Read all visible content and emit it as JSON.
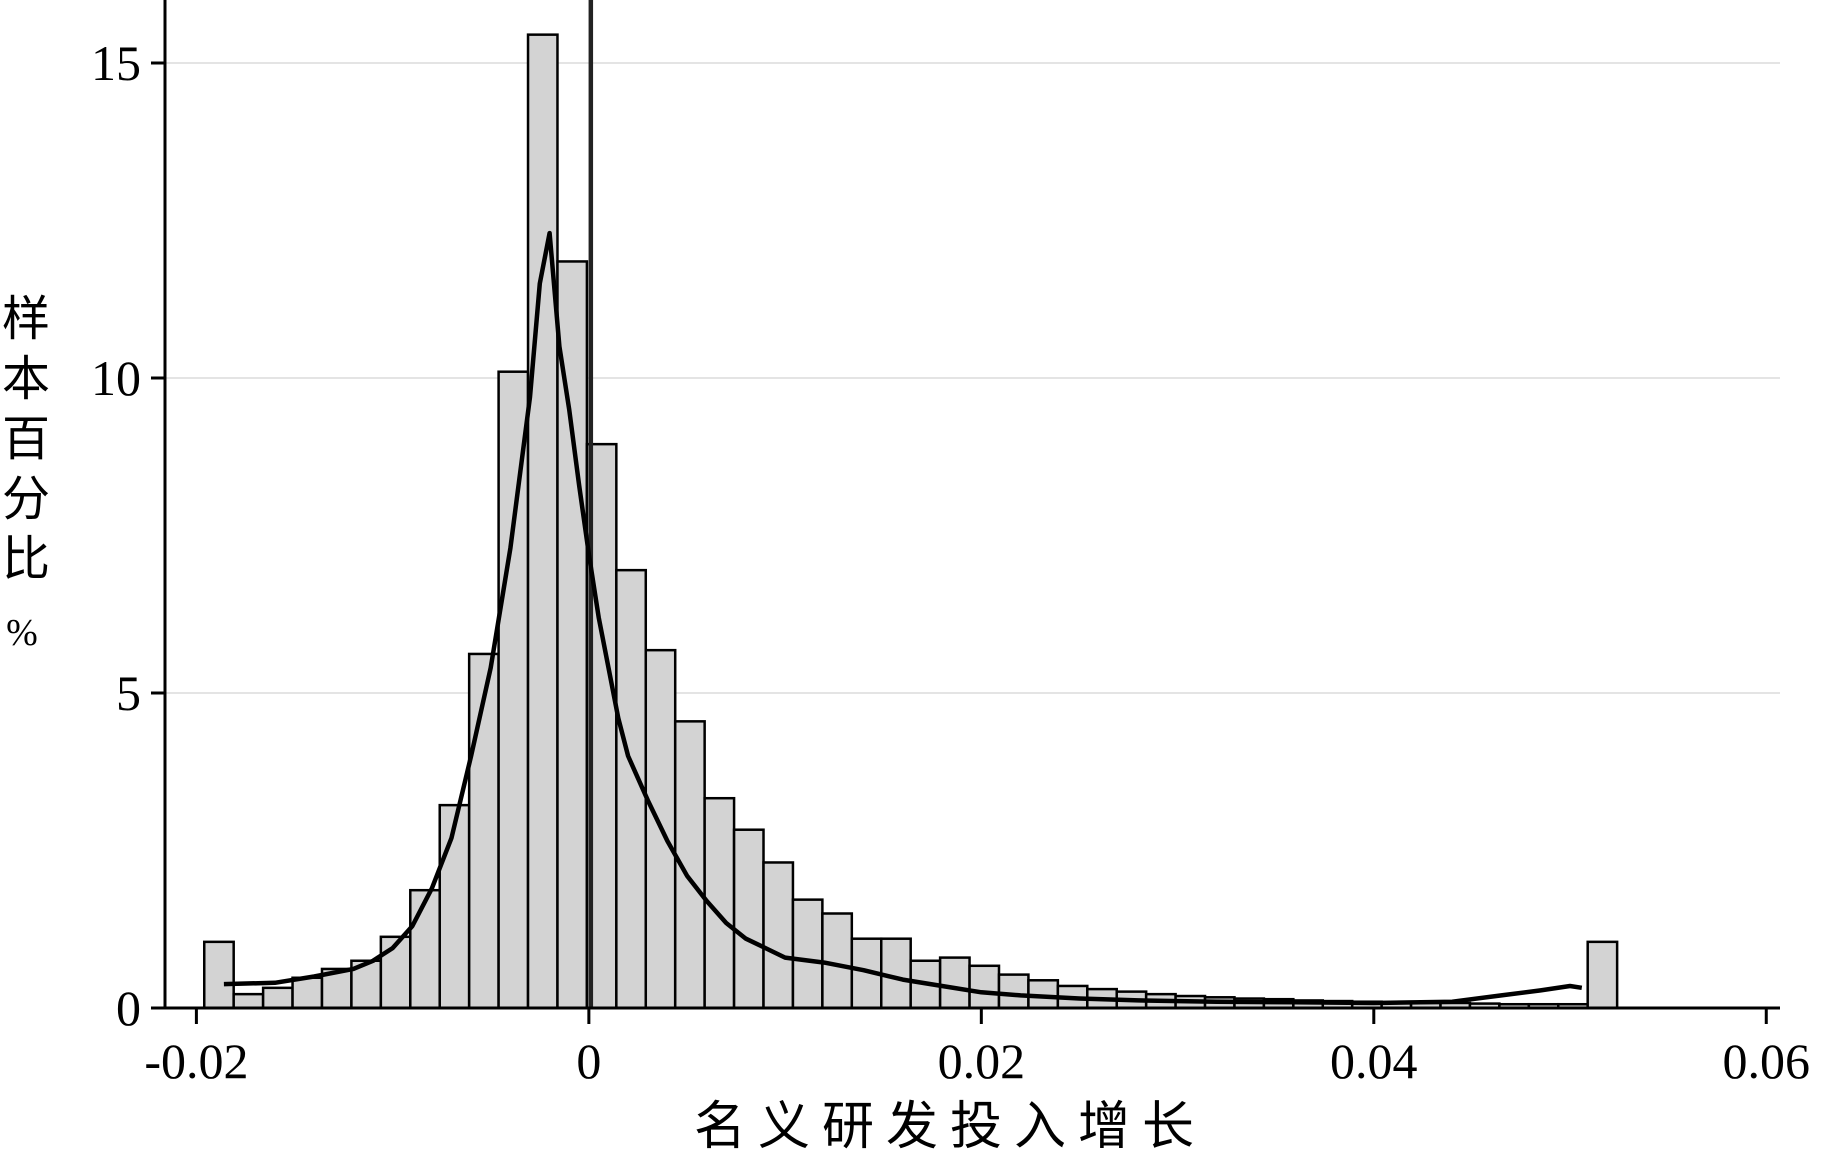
{
  "chart_data": {
    "type": "bar",
    "title": "",
    "xlabel": "名义研发投入增长",
    "ylabel": "样本百分比",
    "ylabel_unit": "%",
    "xlim": [
      -0.0216,
      0.0607
    ],
    "ylim": [
      0,
      16
    ],
    "x_ticks": [
      {
        "value": -0.02,
        "label": "-0.02"
      },
      {
        "value": 0,
        "label": "0"
      },
      {
        "value": 0.02,
        "label": "0.02"
      },
      {
        "value": 0.04,
        "label": "0.04"
      },
      {
        "value": 0.06,
        "label": "0.06"
      }
    ],
    "y_ticks": [
      {
        "value": 0,
        "label": "0"
      },
      {
        "value": 5,
        "label": "5"
      },
      {
        "value": 10,
        "label": "10"
      },
      {
        "value": 15,
        "label": "15"
      }
    ],
    "grid": "horizontal",
    "bin_width": 0.0015,
    "bins": [
      {
        "x0": -0.0196,
        "value": 1.05
      },
      {
        "x0": -0.0181,
        "value": 0.22
      },
      {
        "x0": -0.0166,
        "value": 0.32
      },
      {
        "x0": -0.0151,
        "value": 0.48
      },
      {
        "x0": -0.0136,
        "value": 0.62
      },
      {
        "x0": -0.0121,
        "value": 0.75
      },
      {
        "x0": -0.0106,
        "value": 1.13
      },
      {
        "x0": -0.0091,
        "value": 1.87
      },
      {
        "x0": -0.0076,
        "value": 3.22
      },
      {
        "x0": -0.0061,
        "value": 5.62
      },
      {
        "x0": -0.0046,
        "value": 10.1
      },
      {
        "x0": -0.0031,
        "value": 15.45
      },
      {
        "x0": -0.0016,
        "value": 11.85
      },
      {
        "x0": -0.0001,
        "value": 8.95
      },
      {
        "x0": 0.0014,
        "value": 6.95
      },
      {
        "x0": 0.0029,
        "value": 5.68
      },
      {
        "x0": 0.0044,
        "value": 4.55
      },
      {
        "x0": 0.0059,
        "value": 3.33
      },
      {
        "x0": 0.0074,
        "value": 2.83
      },
      {
        "x0": 0.0089,
        "value": 2.31
      },
      {
        "x0": 0.0104,
        "value": 1.72
      },
      {
        "x0": 0.0119,
        "value": 1.5
      },
      {
        "x0": 0.0134,
        "value": 1.1
      },
      {
        "x0": 0.0149,
        "value": 1.1
      },
      {
        "x0": 0.0164,
        "value": 0.75
      },
      {
        "x0": 0.0179,
        "value": 0.8
      },
      {
        "x0": 0.0194,
        "value": 0.67
      },
      {
        "x0": 0.0209,
        "value": 0.53
      },
      {
        "x0": 0.0224,
        "value": 0.44
      },
      {
        "x0": 0.0239,
        "value": 0.35
      },
      {
        "x0": 0.0254,
        "value": 0.3
      },
      {
        "x0": 0.0269,
        "value": 0.26
      },
      {
        "x0": 0.0284,
        "value": 0.22
      },
      {
        "x0": 0.0299,
        "value": 0.19
      },
      {
        "x0": 0.0314,
        "value": 0.17
      },
      {
        "x0": 0.0329,
        "value": 0.15
      },
      {
        "x0": 0.0344,
        "value": 0.14
      },
      {
        "x0": 0.0359,
        "value": 0.12
      },
      {
        "x0": 0.0374,
        "value": 0.11
      },
      {
        "x0": 0.0389,
        "value": 0.1
      },
      {
        "x0": 0.0404,
        "value": 0.09
      },
      {
        "x0": 0.0419,
        "value": 0.08
      },
      {
        "x0": 0.0434,
        "value": 0.08
      },
      {
        "x0": 0.0449,
        "value": 0.07
      },
      {
        "x0": 0.0464,
        "value": 0.06
      },
      {
        "x0": 0.0479,
        "value": 0.06
      },
      {
        "x0": 0.0494,
        "value": 0.06
      },
      {
        "x0": 0.0509,
        "value": 1.05
      }
    ],
    "density_curve": {
      "x": [
        -0.0186,
        -0.016,
        -0.014,
        -0.012,
        -0.011,
        -0.01,
        -0.009,
        -0.008,
        -0.007,
        -0.006,
        -0.005,
        -0.004,
        -0.003,
        -0.0025,
        -0.002,
        -0.0015,
        -0.001,
        -0.0005,
        0.0,
        0.0005,
        0.001,
        0.0015,
        0.002,
        0.003,
        0.004,
        0.005,
        0.006,
        0.007,
        0.008,
        0.009,
        0.01,
        0.012,
        0.014,
        0.016,
        0.018,
        0.02,
        0.022,
        0.025,
        0.028,
        0.032,
        0.036,
        0.04,
        0.044,
        0.0465,
        0.0485,
        0.05,
        0.0506
      ],
      "y": [
        0.38,
        0.4,
        0.5,
        0.62,
        0.75,
        0.95,
        1.3,
        1.9,
        2.7,
        4.0,
        5.4,
        7.3,
        9.7,
        11.5,
        12.3,
        10.5,
        9.5,
        8.3,
        7.2,
        6.2,
        5.4,
        4.6,
        4.0,
        3.3,
        2.65,
        2.1,
        1.7,
        1.35,
        1.1,
        0.95,
        0.8,
        0.72,
        0.6,
        0.45,
        0.35,
        0.25,
        0.2,
        0.15,
        0.12,
        0.1,
        0.09,
        0.08,
        0.1,
        0.2,
        0.28,
        0.35,
        0.32
      ]
    },
    "reference_line": {
      "x": 0.0001
    }
  }
}
